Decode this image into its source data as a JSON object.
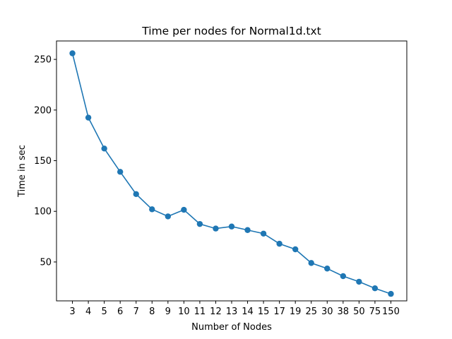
{
  "chart_data": {
    "type": "line",
    "title": "Time per nodes for Normal1d.txt",
    "xlabel": "Number of Nodes",
    "ylabel": "Time in sec",
    "categories": [
      "3",
      "4",
      "5",
      "6",
      "7",
      "8",
      "9",
      "10",
      "11",
      "12",
      "13",
      "14",
      "15",
      "17",
      "19",
      "25",
      "30",
      "38",
      "50",
      "75",
      "150"
    ],
    "series": [
      {
        "values": [
          256,
          192.5,
          162,
          139,
          117,
          102,
          95,
          101.5,
          87.5,
          83,
          85,
          81.5,
          78,
          68,
          62.5,
          49,
          43.5,
          36,
          30.5,
          24,
          18.5
        ]
      }
    ],
    "yticks": [
      50,
      100,
      150,
      200,
      250
    ],
    "ylim": [
      11.6,
      268.2
    ],
    "grid": false,
    "marker": "circle",
    "color": "#1f77b4"
  }
}
